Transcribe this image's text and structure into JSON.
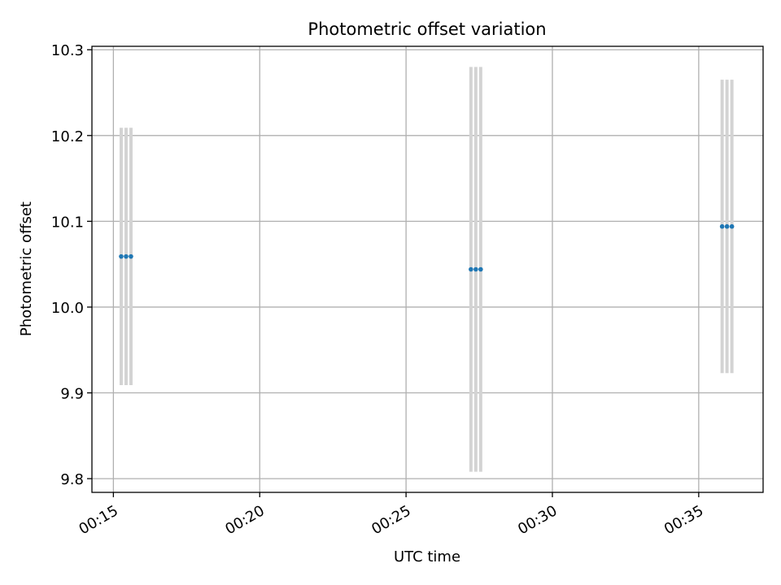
{
  "chart_data": {
    "type": "scatter",
    "title": "Photometric offset variation",
    "xlabel": "UTC time",
    "ylabel": "Photometric offset",
    "x_ticks": [
      "00:15",
      "00:20",
      "00:25",
      "00:30",
      "00:35"
    ],
    "y_ticks": [
      "9.8",
      "9.9",
      "10.0",
      "10.1",
      "10.2",
      "10.3"
    ],
    "xlim": [
      "00:14:16",
      "00:37:12"
    ],
    "ylim": [
      9.784,
      10.304
    ],
    "grid": true,
    "errorbar_color": "#d3d3d3",
    "marker_color": "#1f77b4",
    "series": [
      {
        "points": [
          {
            "x": "00:15:16",
            "y": 10.059,
            "err": 0.15
          },
          {
            "x": "00:15:26",
            "y": 10.059,
            "err": 0.15
          },
          {
            "x": "00:15:36",
            "y": 10.059,
            "err": 0.15
          },
          {
            "x": "00:27:13",
            "y": 10.044,
            "err": 0.236
          },
          {
            "x": "00:27:23",
            "y": 10.044,
            "err": 0.236
          },
          {
            "x": "00:27:33",
            "y": 10.044,
            "err": 0.236
          },
          {
            "x": "00:35:48",
            "y": 10.094,
            "err": 0.171
          },
          {
            "x": "00:35:58",
            "y": 10.094,
            "err": 0.171
          },
          {
            "x": "00:36:08",
            "y": 10.094,
            "err": 0.171
          }
        ]
      }
    ]
  }
}
